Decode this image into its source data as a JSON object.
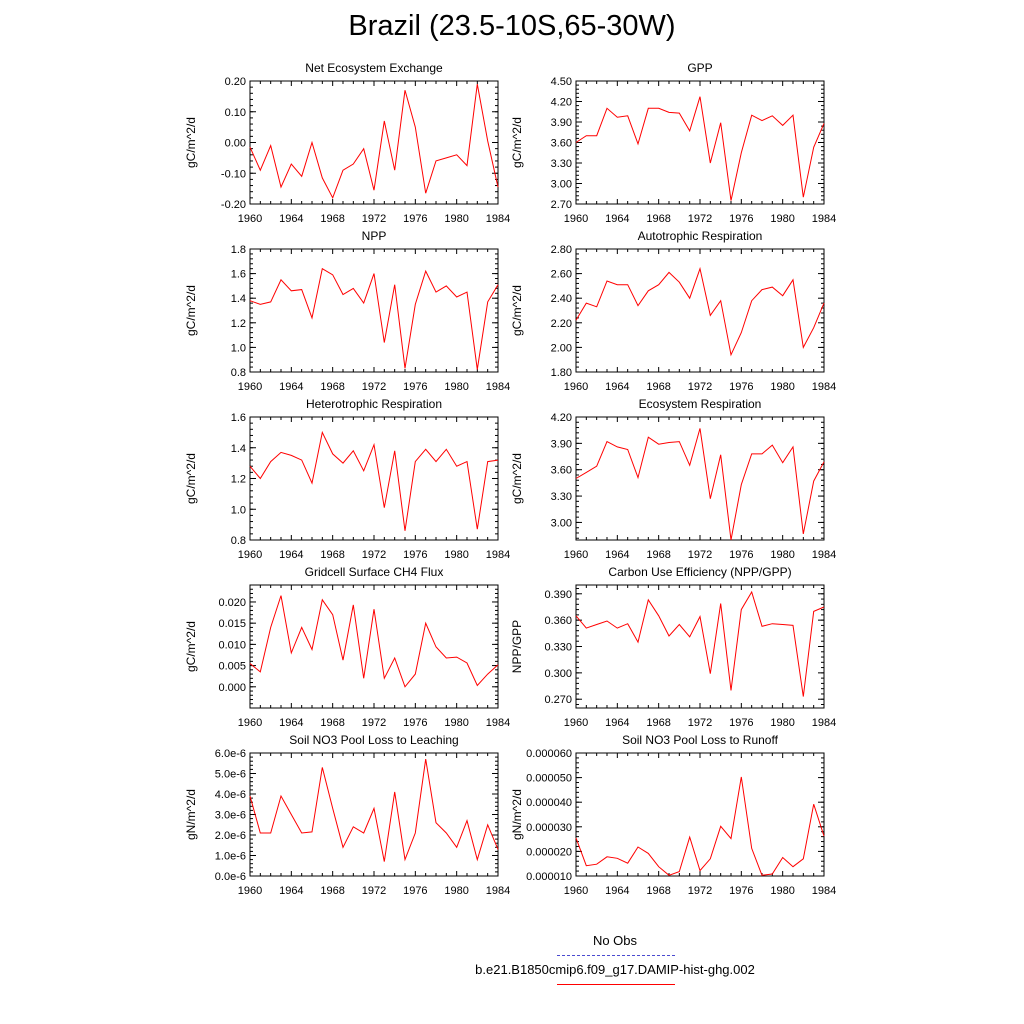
{
  "title": "Brazil (23.5-10S,65-30W)",
  "colors": {
    "series": "#ff0000",
    "obs": "#4a4ad0",
    "axis": "#000000"
  },
  "legend": {
    "entries": [
      {
        "label": "No Obs",
        "style": "dashed",
        "color": "#4a4ad0"
      },
      {
        "label": "b.e21.B1850cmip6.f09_g17.DAMIP-hist-ghg.002",
        "style": "solid",
        "color": "#ff0000"
      }
    ]
  },
  "chart_data": [
    {
      "type": "line",
      "title": "Net Ecosystem Exchange",
      "ylabel": "gC/m^2/d",
      "xlim": [
        1960,
        1984
      ],
      "ylim": [
        -0.2,
        0.2
      ],
      "xticks": [
        "1960",
        "1964",
        "1968",
        "1972",
        "1976",
        "1980",
        "1984"
      ],
      "yticks": [
        "-0.20",
        "-0.10",
        "0.00",
        "0.10",
        "0.20"
      ],
      "x": [
        1960,
        1961,
        1962,
        1963,
        1964,
        1965,
        1966,
        1967,
        1968,
        1969,
        1970,
        1971,
        1972,
        1973,
        1974,
        1975,
        1976,
        1977,
        1978,
        1979,
        1980,
        1981,
        1982,
        1983,
        1984
      ],
      "series": [
        {
          "name": "b.e21.B1850cmip6.f09_g17.DAMIP-hist-ghg.002",
          "values": [
            -0.015,
            -0.09,
            -0.01,
            -0.145,
            -0.07,
            -0.11,
            0.0,
            -0.115,
            -0.18,
            -0.09,
            -0.07,
            -0.02,
            -0.155,
            0.07,
            -0.09,
            0.17,
            0.05,
            -0.165,
            -0.06,
            -0.05,
            -0.04,
            -0.075,
            0.19,
            0.005,
            -0.145
          ]
        }
      ]
    },
    {
      "type": "line",
      "title": "GPP",
      "ylabel": "gC/m^2/d",
      "xlim": [
        1960,
        1984
      ],
      "ylim": [
        2.7,
        4.5
      ],
      "xticks": [
        "1960",
        "1964",
        "1968",
        "1972",
        "1976",
        "1980",
        "1984"
      ],
      "yticks": [
        "2.70",
        "3.00",
        "3.30",
        "3.60",
        "3.90",
        "4.20",
        "4.50"
      ],
      "x": [
        1960,
        1961,
        1962,
        1963,
        1964,
        1965,
        1966,
        1967,
        1968,
        1969,
        1970,
        1971,
        1972,
        1973,
        1974,
        1975,
        1976,
        1977,
        1978,
        1979,
        1980,
        1981,
        1982,
        1983,
        1984
      ],
      "series": [
        {
          "name": "b.e21.B1850cmip6.f09_g17.DAMIP-hist-ghg.002",
          "values": [
            3.6,
            3.7,
            3.7,
            4.1,
            3.97,
            3.99,
            3.58,
            4.1,
            4.1,
            4.04,
            4.03,
            3.77,
            4.27,
            3.3,
            3.89,
            2.75,
            3.45,
            4.0,
            3.92,
            3.99,
            3.85,
            4.0,
            2.8,
            3.53,
            3.88
          ]
        }
      ]
    },
    {
      "type": "line",
      "title": "NPP",
      "ylabel": "gC/m^2/d",
      "xlim": [
        1960,
        1984
      ],
      "ylim": [
        0.8,
        1.8
      ],
      "xticks": [
        "1960",
        "1964",
        "1968",
        "1972",
        "1976",
        "1980",
        "1984"
      ],
      "yticks": [
        "0.8",
        "1.0",
        "1.2",
        "1.4",
        "1.6",
        "1.8"
      ],
      "x": [
        1960,
        1961,
        1962,
        1963,
        1964,
        1965,
        1966,
        1967,
        1968,
        1969,
        1970,
        1971,
        1972,
        1973,
        1974,
        1975,
        1976,
        1977,
        1978,
        1979,
        1980,
        1981,
        1982,
        1983,
        1984
      ],
      "series": [
        {
          "name": "b.e21.B1850cmip6.f09_g17.DAMIP-hist-ghg.002",
          "values": [
            1.38,
            1.35,
            1.37,
            1.55,
            1.46,
            1.47,
            1.24,
            1.64,
            1.59,
            1.43,
            1.48,
            1.36,
            1.6,
            1.04,
            1.51,
            0.83,
            1.35,
            1.62,
            1.45,
            1.5,
            1.41,
            1.45,
            0.82,
            1.37,
            1.51
          ]
        }
      ]
    },
    {
      "type": "line",
      "title": "Autotrophic Respiration",
      "ylabel": "gC/m^2/d",
      "xlim": [
        1960,
        1984
      ],
      "ylim": [
        1.8,
        2.8
      ],
      "xticks": [
        "1960",
        "1964",
        "1968",
        "1972",
        "1976",
        "1980",
        "1984"
      ],
      "yticks": [
        "1.80",
        "2.00",
        "2.20",
        "2.40",
        "2.60",
        "2.80"
      ],
      "x": [
        1960,
        1961,
        1962,
        1963,
        1964,
        1965,
        1966,
        1967,
        1968,
        1969,
        1970,
        1971,
        1972,
        1973,
        1974,
        1975,
        1976,
        1977,
        1978,
        1979,
        1980,
        1981,
        1982,
        1983,
        1984
      ],
      "series": [
        {
          "name": "b.e21.B1850cmip6.f09_g17.DAMIP-hist-ghg.002",
          "values": [
            2.22,
            2.36,
            2.33,
            2.54,
            2.51,
            2.51,
            2.34,
            2.46,
            2.51,
            2.61,
            2.53,
            2.4,
            2.64,
            2.26,
            2.38,
            1.94,
            2.12,
            2.38,
            2.47,
            2.49,
            2.42,
            2.55,
            2.0,
            2.16,
            2.36
          ]
        }
      ]
    },
    {
      "type": "line",
      "title": "Heterotrophic Respiration",
      "ylabel": "gC/m^2/d",
      "xlim": [
        1960,
        1984
      ],
      "ylim": [
        0.8,
        1.6
      ],
      "xticks": [
        "1960",
        "1964",
        "1968",
        "1972",
        "1976",
        "1980",
        "1984"
      ],
      "yticks": [
        "0.8",
        "1.0",
        "1.2",
        "1.4",
        "1.6"
      ],
      "x": [
        1960,
        1961,
        1962,
        1963,
        1964,
        1965,
        1966,
        1967,
        1968,
        1969,
        1970,
        1971,
        1972,
        1973,
        1974,
        1975,
        1976,
        1977,
        1978,
        1979,
        1980,
        1981,
        1982,
        1983,
        1984
      ],
      "series": [
        {
          "name": "b.e21.B1850cmip6.f09_g17.DAMIP-hist-ghg.002",
          "values": [
            1.28,
            1.2,
            1.31,
            1.37,
            1.35,
            1.32,
            1.17,
            1.5,
            1.36,
            1.3,
            1.38,
            1.25,
            1.42,
            1.01,
            1.38,
            0.86,
            1.31,
            1.39,
            1.31,
            1.39,
            1.28,
            1.31,
            0.87,
            1.31,
            1.32
          ]
        }
      ]
    },
    {
      "type": "line",
      "title": "Ecosystem Respiration",
      "ylabel": "gC/m^2/d",
      "xlim": [
        1960,
        1984
      ],
      "ylim": [
        2.8,
        4.2
      ],
      "xticks": [
        "1960",
        "1964",
        "1968",
        "1972",
        "1976",
        "1980",
        "1984"
      ],
      "yticks": [
        "3.00",
        "3.30",
        "3.60",
        "3.90",
        "4.20"
      ],
      "x": [
        1960,
        1961,
        1962,
        1963,
        1964,
        1965,
        1966,
        1967,
        1968,
        1969,
        1970,
        1971,
        1972,
        1973,
        1974,
        1975,
        1976,
        1977,
        1978,
        1979,
        1980,
        1981,
        1982,
        1983,
        1984
      ],
      "series": [
        {
          "name": "b.e21.B1850cmip6.f09_g17.DAMIP-hist-ghg.002",
          "values": [
            3.5,
            3.57,
            3.64,
            3.92,
            3.86,
            3.83,
            3.51,
            3.97,
            3.89,
            3.91,
            3.92,
            3.65,
            4.07,
            3.27,
            3.77,
            2.8,
            3.43,
            3.78,
            3.78,
            3.88,
            3.68,
            3.86,
            2.87,
            3.47,
            3.69
          ]
        }
      ]
    },
    {
      "type": "line",
      "title": "Gridcell Surface CH4 Flux",
      "ylabel": "gC/m^2/d",
      "xlim": [
        1960,
        1984
      ],
      "ylim": [
        -0.005,
        0.024
      ],
      "xticks": [
        "1960",
        "1964",
        "1968",
        "1972",
        "1976",
        "1980",
        "1984"
      ],
      "yticks": [
        "0.000",
        "0.005",
        "0.010",
        "0.015",
        "0.020"
      ],
      "x": [
        1960,
        1961,
        1962,
        1963,
        1964,
        1965,
        1966,
        1967,
        1968,
        1969,
        1970,
        1971,
        1972,
        1973,
        1974,
        1975,
        1976,
        1977,
        1978,
        1979,
        1980,
        1981,
        1982,
        1983,
        1984
      ],
      "series": [
        {
          "name": "b.e21.B1850cmip6.f09_g17.DAMIP-hist-ghg.002",
          "values": [
            0.0055,
            0.0035,
            0.014,
            0.0215,
            0.008,
            0.014,
            0.0088,
            0.0205,
            0.017,
            0.0063,
            0.0193,
            0.002,
            0.0183,
            0.002,
            0.0068,
            0.0,
            0.003,
            0.015,
            0.0094,
            0.0068,
            0.007,
            0.0056,
            0.0003,
            0.003,
            0.0052
          ]
        }
      ]
    },
    {
      "type": "line",
      "title": "Carbon Use Efficiency (NPP/GPP)",
      "ylabel": "NPP/GPP",
      "xlim": [
        1960,
        1984
      ],
      "ylim": [
        0.26,
        0.4
      ],
      "xticks": [
        "1960",
        "1964",
        "1968",
        "1972",
        "1976",
        "1980",
        "1984"
      ],
      "yticks": [
        "0.270",
        "0.300",
        "0.330",
        "0.360",
        "0.390"
      ],
      "x": [
        1960,
        1961,
        1962,
        1963,
        1964,
        1965,
        1966,
        1967,
        1968,
        1969,
        1970,
        1971,
        1972,
        1973,
        1974,
        1975,
        1976,
        1977,
        1978,
        1979,
        1980,
        1981,
        1982,
        1983,
        1984
      ],
      "series": [
        {
          "name": "b.e21.B1850cmip6.f09_g17.DAMIP-hist-ghg.002",
          "values": [
            0.365,
            0.351,
            0.355,
            0.359,
            0.351,
            0.356,
            0.335,
            0.383,
            0.365,
            0.342,
            0.355,
            0.341,
            0.364,
            0.299,
            0.379,
            0.28,
            0.372,
            0.392,
            0.353,
            0.356,
            0.355,
            0.354,
            0.273,
            0.37,
            0.375
          ]
        }
      ]
    },
    {
      "type": "line",
      "title": "Soil NO3 Pool Loss to Leaching",
      "ylabel": "gN/m^2/d",
      "xlim": [
        1960,
        1984
      ],
      "ylim": [
        0,
        6e-06
      ],
      "xticks": [
        "1960",
        "1964",
        "1968",
        "1972",
        "1976",
        "1980",
        "1984"
      ],
      "yticks": [
        "0.0e-6",
        "1.0e-6",
        "2.0e-6",
        "3.0e-6",
        "4.0e-6",
        "5.0e-6",
        "6.0e-6"
      ],
      "x": [
        1960,
        1961,
        1962,
        1963,
        1964,
        1965,
        1966,
        1967,
        1968,
        1969,
        1970,
        1971,
        1972,
        1973,
        1974,
        1975,
        1976,
        1977,
        1978,
        1979,
        1980,
        1981,
        1982,
        1983,
        1984
      ],
      "series": [
        {
          "name": "b.e21.B1850cmip6.f09_g17.DAMIP-hist-ghg.002",
          "values": [
            3.9e-06,
            2.1e-06,
            2.1e-06,
            3.9e-06,
            3e-06,
            2.1e-06,
            2.15e-06,
            5.3e-06,
            3.3e-06,
            1.4e-06,
            2.4e-06,
            2.1e-06,
            3.3e-06,
            7e-07,
            4.1e-06,
            8e-07,
            2.1e-06,
            5.7e-06,
            2.6e-06,
            2.1e-06,
            1.4e-06,
            2.7e-06,
            8e-07,
            2.5e-06,
            1.3e-06
          ]
        }
      ]
    },
    {
      "type": "line",
      "title": "Soil NO3 Pool Loss to Runoff",
      "ylabel": "gN/m^2/d",
      "xlim": [
        1960,
        1984
      ],
      "ylim": [
        1e-05,
        6e-05
      ],
      "xticks": [
        "1960",
        "1964",
        "1968",
        "1972",
        "1976",
        "1980",
        "1984"
      ],
      "yticks": [
        "0.000010",
        "0.000020",
        "0.000030",
        "0.000040",
        "0.000050",
        "0.000060"
      ],
      "x": [
        1960,
        1961,
        1962,
        1963,
        1964,
        1965,
        1966,
        1967,
        1968,
        1969,
        1970,
        1971,
        1972,
        1973,
        1974,
        1975,
        1976,
        1977,
        1978,
        1979,
        1980,
        1981,
        1982,
        1983,
        1984
      ],
      "series": [
        {
          "name": "b.e21.B1850cmip6.f09_g17.DAMIP-hist-ghg.002",
          "values": [
            2.55e-05,
            1.42e-05,
            1.48e-05,
            1.78e-05,
            1.72e-05,
            1.52e-05,
            2.18e-05,
            1.92e-05,
            1.38e-05,
            1.03e-05,
            1.18e-05,
            2.58e-05,
            1.22e-05,
            1.7e-05,
            3.02e-05,
            2.52e-05,
            5.03e-05,
            2.12e-05,
            1.03e-05,
            1.08e-05,
            1.75e-05,
            1.38e-05,
            1.7e-05,
            3.92e-05,
            2.62e-05
          ]
        }
      ]
    }
  ]
}
